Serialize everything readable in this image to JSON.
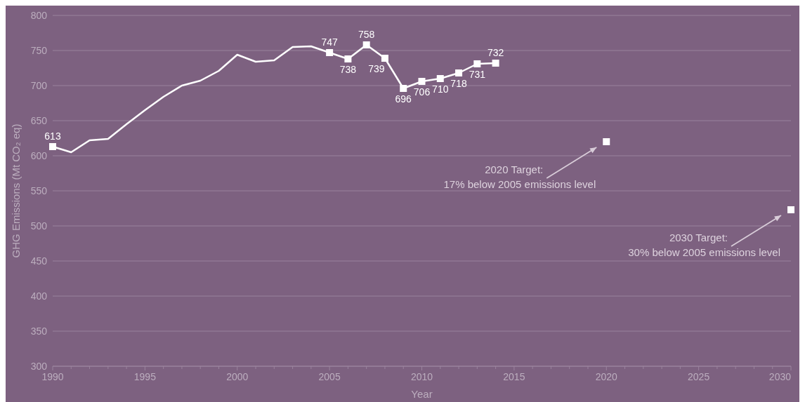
{
  "chart_data": {
    "type": "line",
    "xlabel": "Year",
    "ylabel": "GHG Emissions (Mt CO₂ eq)",
    "xlim": [
      1990,
      2030
    ],
    "ylim": [
      300,
      800
    ],
    "xticks": [
      1990,
      {
        "value": 1991,
        "label": null
      },
      {
        "value": 1992,
        "label": null
      },
      {
        "value": 1993,
        "label": null
      },
      {
        "value": 1994,
        "label": null
      },
      1995,
      {
        "value": 1996,
        "label": null
      },
      {
        "value": 1997,
        "label": null
      },
      {
        "value": 1998,
        "label": null
      },
      {
        "value": 1999,
        "label": null
      },
      2000,
      {
        "value": 2001,
        "label": null
      },
      {
        "value": 2002,
        "label": null
      },
      {
        "value": 2003,
        "label": null
      },
      {
        "value": 2004,
        "label": null
      },
      2005,
      {
        "value": 2006,
        "label": null
      },
      {
        "value": 2007,
        "label": null
      },
      {
        "value": 2008,
        "label": null
      },
      {
        "value": 2009,
        "label": null
      },
      2010,
      {
        "value": 2011,
        "label": null
      },
      {
        "value": 2012,
        "label": null
      },
      {
        "value": 2013,
        "label": null
      },
      {
        "value": 2014,
        "label": null
      },
      2015,
      {
        "value": 2016,
        "label": null
      },
      {
        "value": 2017,
        "label": null
      },
      {
        "value": 2018,
        "label": null
      },
      {
        "value": 2019,
        "label": null
      },
      2020,
      {
        "value": 2021,
        "label": null
      },
      {
        "value": 2022,
        "label": null
      },
      {
        "value": 2023,
        "label": null
      },
      {
        "value": 2024,
        "label": null
      },
      2025,
      {
        "value": 2026,
        "label": null
      },
      {
        "value": 2027,
        "label": null
      },
      {
        "value": 2028,
        "label": null
      },
      {
        "value": 2029,
        "label": null
      },
      2030
    ],
    "yticks": [
      300,
      350,
      400,
      450,
      500,
      550,
      600,
      650,
      700,
      750,
      800
    ],
    "grid": "y",
    "line_style": "solid",
    "series": [
      {
        "color": "#ffffff",
        "marker": "none",
        "x": [
          1990,
          1991,
          1992,
          1993,
          1994,
          1995,
          1996,
          1997,
          1998,
          1999,
          2000,
          2001,
          2002,
          2003,
          2004,
          2005,
          2006,
          2007,
          2008,
          2009,
          2010,
          2011,
          2012,
          2013,
          2014
        ],
        "values": [
          613,
          605,
          622,
          624,
          645,
          665,
          684,
          700,
          707,
          721,
          744,
          734,
          736,
          755,
          756,
          747,
          738,
          758,
          739,
          696,
          706,
          710,
          718,
          731,
          732
        ]
      },
      {
        "type": "scatter",
        "color": "#ffffff",
        "marker": "square",
        "data_labels": true,
        "x": [
          1990,
          2005,
          2006,
          2007,
          2008,
          2009,
          2010,
          2011,
          2012,
          2013,
          2014
        ],
        "values": [
          613,
          747,
          738,
          758,
          739,
          696,
          706,
          710,
          718,
          731,
          732
        ]
      },
      {
        "type": "scatter",
        "color": "#ffffff",
        "marker": "square",
        "x": [
          2020,
          2030
        ],
        "values": [
          620,
          523
        ]
      }
    ],
    "annotations": [
      {
        "text": "2020 Target:\n17% below 2005 emissions level",
        "x": 2020,
        "y": 620
      },
      {
        "text": "2030 Target:\n30% below 2005 emissions level",
        "x": 2030,
        "y": 523
      }
    ]
  }
}
